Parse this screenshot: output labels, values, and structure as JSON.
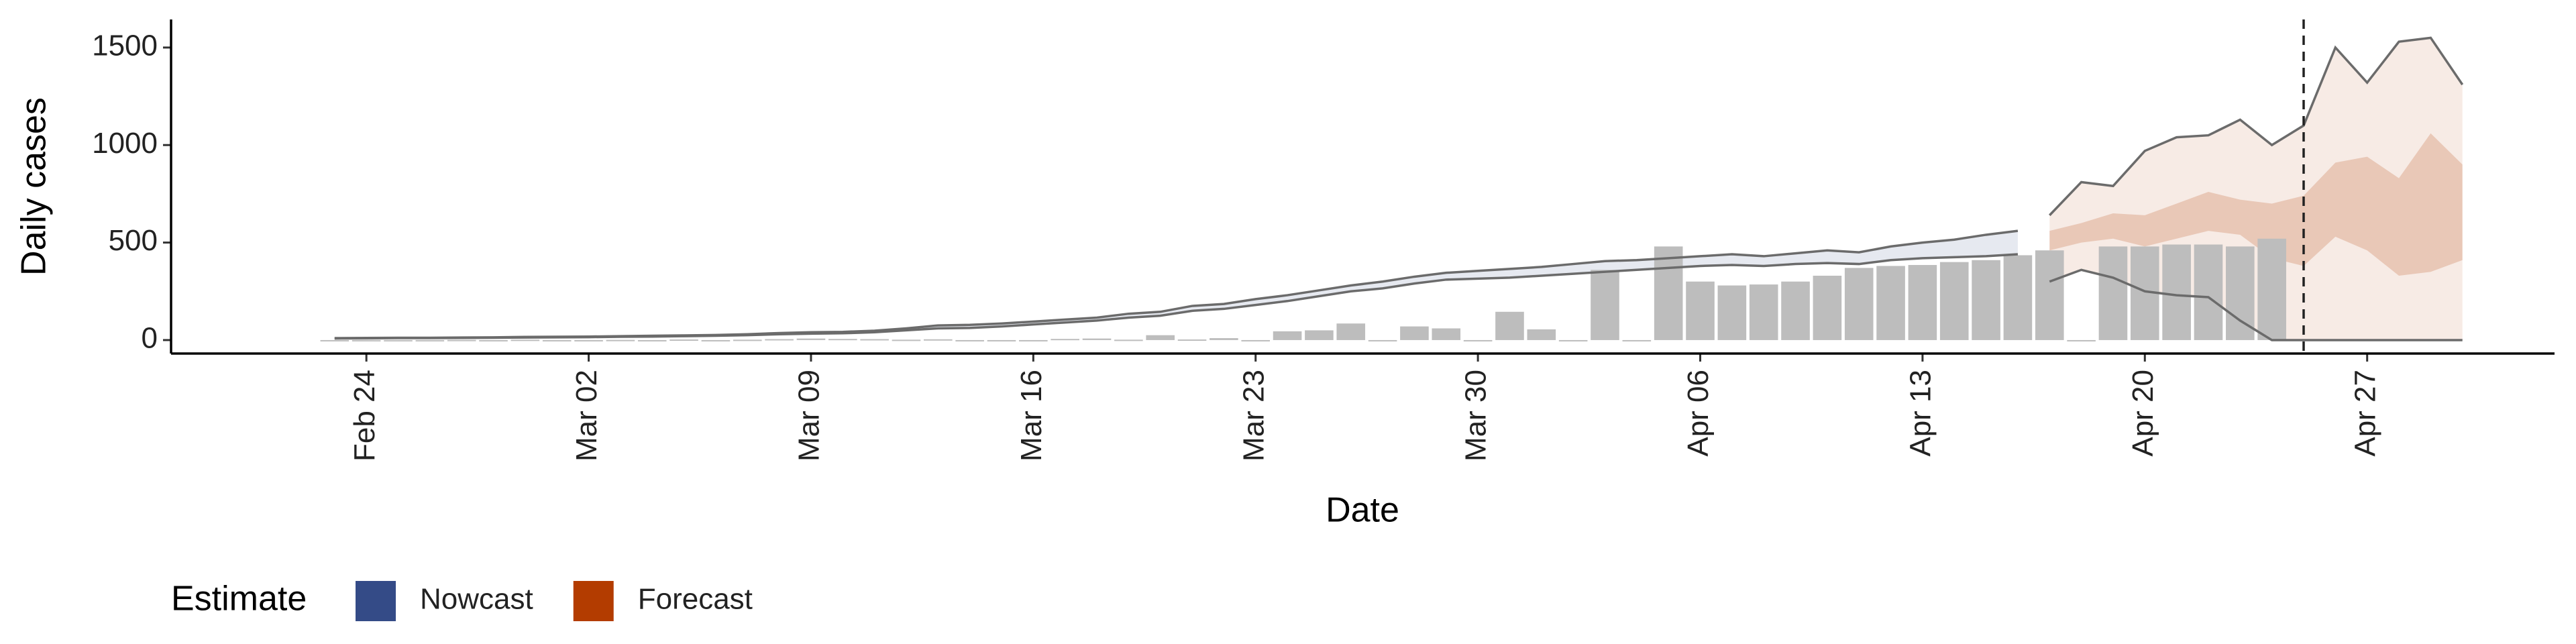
{
  "chart_data": {
    "type": "bar",
    "x_label": "Date",
    "y_label": "Daily cases",
    "x": [
      "Feb 23",
      "Feb 24",
      "Feb 25",
      "Feb 26",
      "Feb 27",
      "Feb 28",
      "Feb 29",
      "Mar 01",
      "Mar 02",
      "Mar 03",
      "Mar 04",
      "Mar 05",
      "Mar 06",
      "Mar 07",
      "Mar 08",
      "Mar 09",
      "Mar 10",
      "Mar 11",
      "Mar 12",
      "Mar 13",
      "Mar 14",
      "Mar 15",
      "Mar 16",
      "Mar 17",
      "Mar 18",
      "Mar 19",
      "Mar 20",
      "Mar 21",
      "Mar 22",
      "Mar 23",
      "Mar 24",
      "Mar 25",
      "Mar 26",
      "Mar 27",
      "Mar 28",
      "Mar 29",
      "Mar 30",
      "Mar 31",
      "Apr 01",
      "Apr 02",
      "Apr 03",
      "Apr 04",
      "Apr 05",
      "Apr 06",
      "Apr 07",
      "Apr 08",
      "Apr 09",
      "Apr 10",
      "Apr 11",
      "Apr 12",
      "Apr 13",
      "Apr 14",
      "Apr 15",
      "Apr 16",
      "Apr 17",
      "Apr 18",
      "Apr 19",
      "Apr 20",
      "Apr 21",
      "Apr 22",
      "Apr 23",
      "Apr 24",
      "Apr 25",
      "Apr 26",
      "Apr 27",
      "Apr 28",
      "Apr 29",
      "Apr 30"
    ],
    "values": [
      0,
      0,
      0,
      0,
      1,
      0,
      2,
      0,
      0,
      1,
      0,
      3,
      0,
      2,
      5,
      8,
      6,
      5,
      2,
      4,
      0,
      0,
      0,
      6,
      8,
      2,
      25,
      3,
      10,
      0,
      45,
      50,
      85,
      0,
      70,
      60,
      0,
      145,
      55,
      0,
      360,
      0,
      480,
      300,
      280,
      285,
      300,
      330,
      370,
      380,
      385,
      400,
      410,
      435,
      460,
      0,
      480,
      480,
      490,
      490,
      480,
      520,
      null,
      null,
      null,
      null,
      null,
      null
    ],
    "color": "#bdbdbd",
    "bound_color": "#6b6b6b",
    "legend_title": "Estimate",
    "estimates": [
      {
        "name": "Nowcast",
        "color": "#344b87",
        "lower90": [
          8,
          9,
          10,
          10,
          11,
          12,
          13,
          14,
          15,
          17,
          18,
          20,
          22,
          25,
          30,
          33,
          35,
          40,
          50,
          60,
          62,
          70,
          80,
          90,
          100,
          115,
          125,
          150,
          160,
          180,
          200,
          225,
          250,
          265,
          290,
          310,
          315,
          320,
          330,
          340,
          350,
          360,
          370,
          380,
          385,
          380,
          390,
          395,
          390,
          410,
          420,
          425,
          430,
          440,
          null,
          null,
          null,
          null,
          null,
          null,
          null,
          null,
          null,
          null,
          null,
          null,
          null,
          null
        ],
        "upper90": [
          10,
          11,
          12,
          12,
          13,
          14,
          16,
          17,
          18,
          20,
          22,
          24,
          26,
          30,
          36,
          40,
          42,
          48,
          60,
          75,
          78,
          85,
          95,
          105,
          115,
          135,
          145,
          175,
          185,
          210,
          230,
          255,
          280,
          300,
          325,
          345,
          355,
          365,
          375,
          390,
          405,
          410,
          420,
          430,
          440,
          430,
          445,
          460,
          450,
          480,
          500,
          515,
          540,
          560,
          null,
          null,
          null,
          null,
          null,
          null,
          null,
          null,
          null,
          null,
          null,
          null,
          null,
          null
        ]
      },
      {
        "name": "Forecast",
        "color": "#b33c00",
        "lower90": [
          null,
          null,
          null,
          null,
          null,
          null,
          null,
          null,
          null,
          null,
          null,
          null,
          null,
          null,
          null,
          null,
          null,
          null,
          null,
          null,
          null,
          null,
          null,
          null,
          null,
          null,
          null,
          null,
          null,
          null,
          null,
          null,
          null,
          null,
          null,
          null,
          null,
          null,
          null,
          null,
          null,
          null,
          null,
          null,
          null,
          null,
          null,
          null,
          null,
          null,
          null,
          null,
          null,
          null,
          300,
          360,
          320,
          250,
          230,
          220,
          100,
          0,
          0,
          0,
          0,
          0,
          0,
          0
        ],
        "upper90": [
          null,
          null,
          null,
          null,
          null,
          null,
          null,
          null,
          null,
          null,
          null,
          null,
          null,
          null,
          null,
          null,
          null,
          null,
          null,
          null,
          null,
          null,
          null,
          null,
          null,
          null,
          null,
          null,
          null,
          null,
          null,
          null,
          null,
          null,
          null,
          null,
          null,
          null,
          null,
          null,
          null,
          null,
          null,
          null,
          null,
          null,
          null,
          null,
          null,
          null,
          null,
          null,
          null,
          null,
          640,
          810,
          790,
          970,
          1040,
          1050,
          1130,
          1000,
          1100,
          1500,
          1320,
          1530,
          1550,
          1310
        ],
        "lower50": [
          null,
          null,
          null,
          null,
          null,
          null,
          null,
          null,
          null,
          null,
          null,
          null,
          null,
          null,
          null,
          null,
          null,
          null,
          null,
          null,
          null,
          null,
          null,
          null,
          null,
          null,
          null,
          null,
          null,
          null,
          null,
          null,
          null,
          null,
          null,
          null,
          null,
          null,
          null,
          null,
          null,
          null,
          null,
          null,
          null,
          null,
          null,
          null,
          null,
          null,
          null,
          null,
          null,
          null,
          460,
          500,
          520,
          480,
          520,
          560,
          540,
          420,
          380,
          530,
          460,
          330,
          350,
          410
        ],
        "upper50": [
          null,
          null,
          null,
          null,
          null,
          null,
          null,
          null,
          null,
          null,
          null,
          null,
          null,
          null,
          null,
          null,
          null,
          null,
          null,
          null,
          null,
          null,
          null,
          null,
          null,
          null,
          null,
          null,
          null,
          null,
          null,
          null,
          null,
          null,
          null,
          null,
          null,
          null,
          null,
          null,
          null,
          null,
          null,
          null,
          null,
          null,
          null,
          null,
          null,
          null,
          null,
          null,
          null,
          null,
          560,
          600,
          650,
          640,
          700,
          760,
          720,
          700,
          740,
          910,
          940,
          830,
          1060,
          900
        ]
      }
    ],
    "vline": "Apr 25",
    "ylim": [
      -69,
      1644
    ],
    "yticks": [
      0,
      500,
      1000,
      1500
    ],
    "xticks": [
      "Feb 24",
      "Mar 02",
      "Mar 09",
      "Mar 16",
      "Mar 23",
      "Mar 30",
      "Apr 06",
      "Apr 13",
      "Apr 20",
      "Apr 27"
    ],
    "legend": "bottom-left"
  }
}
